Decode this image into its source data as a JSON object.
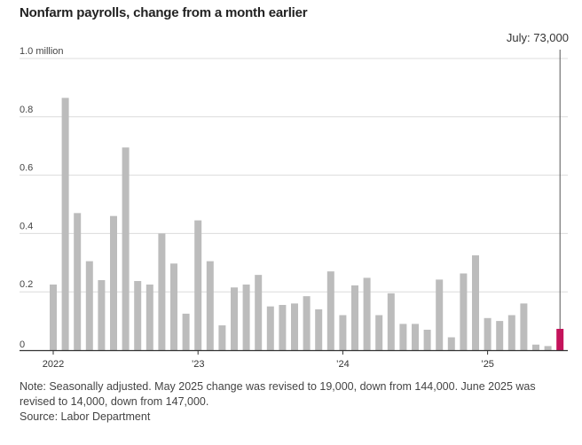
{
  "chart_data": {
    "type": "bar",
    "title": "Nonfarm payrolls, change from a month earlier",
    "unit": "million",
    "ylim": [
      0,
      1.0
    ],
    "yticks": [
      {
        "value": 0,
        "label": "0"
      },
      {
        "value": 0.2,
        "label": "0.2"
      },
      {
        "value": 0.4,
        "label": "0.4"
      },
      {
        "value": 0.6,
        "label": "0.6"
      },
      {
        "value": 0.8,
        "label": "0.8"
      },
      {
        "value": 1.0,
        "label": "1.0 million"
      }
    ],
    "xticks": [
      {
        "index": 0,
        "label": "2022"
      },
      {
        "index": 12,
        "label": "’23"
      },
      {
        "index": 24,
        "label": "’24"
      },
      {
        "index": 36,
        "label": "’25"
      }
    ],
    "grid": true,
    "categories": [
      "2022-01",
      "2022-02",
      "2022-03",
      "2022-04",
      "2022-05",
      "2022-06",
      "2022-07",
      "2022-08",
      "2022-09",
      "2022-10",
      "2022-11",
      "2022-12",
      "2023-01",
      "2023-02",
      "2023-03",
      "2023-04",
      "2023-05",
      "2023-06",
      "2023-07",
      "2023-08",
      "2023-09",
      "2023-10",
      "2023-11",
      "2023-12",
      "2024-01",
      "2024-02",
      "2024-03",
      "2024-04",
      "2024-05",
      "2024-06",
      "2024-07",
      "2024-08",
      "2024-09",
      "2024-10",
      "2024-11",
      "2024-12",
      "2025-01",
      "2025-02",
      "2025-03",
      "2025-04",
      "2025-05",
      "2025-06",
      "2025-07"
    ],
    "values": [
      0.225,
      0.865,
      0.47,
      0.305,
      0.24,
      0.46,
      0.695,
      0.237,
      0.225,
      0.4,
      0.297,
      0.125,
      0.445,
      0.305,
      0.085,
      0.215,
      0.225,
      0.258,
      0.15,
      0.155,
      0.16,
      0.185,
      0.14,
      0.27,
      0.12,
      0.222,
      0.248,
      0.12,
      0.195,
      0.09,
      0.09,
      0.07,
      0.242,
      0.044,
      0.263,
      0.325,
      0.11,
      0.1,
      0.12,
      0.16,
      0.019,
      0.014,
      0.073
    ],
    "bar_color": "#bcbcbc",
    "highlight_color": "#c4135b",
    "highlight_index": 42,
    "annotation": {
      "index": 42,
      "label": "July: 73,000"
    }
  },
  "note": "Note: Seasonally adjusted. May 2025 change was revised to 19,000, down from 144,000. June 2025 was revised to 14,000, down from 147,000.",
  "source": "Source: Labor Department"
}
